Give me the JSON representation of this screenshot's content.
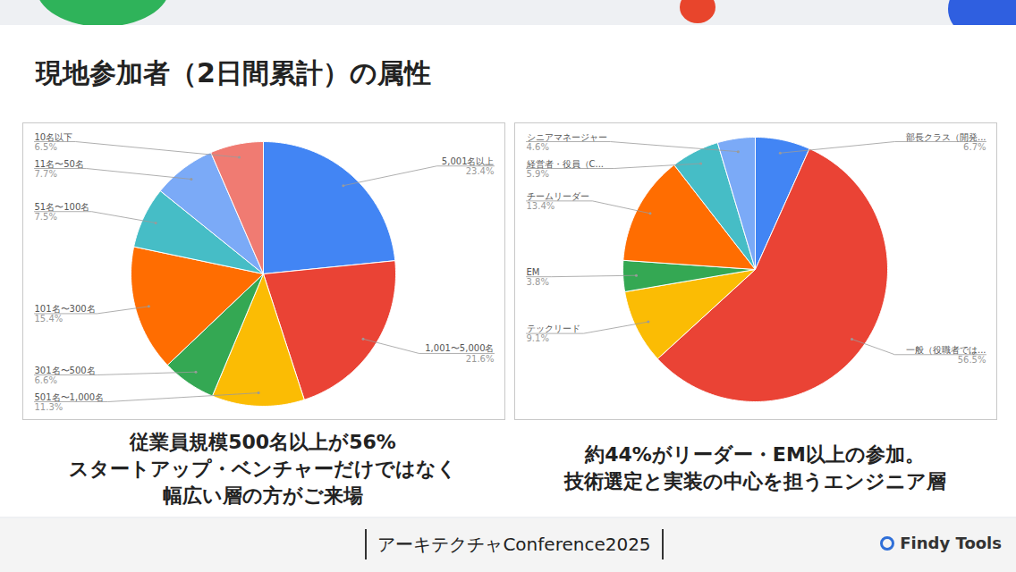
{
  "title": "現地参加者（2日間累計）の属性",
  "footer": {
    "event": "アーキテクチャConference2025",
    "brand": "Findy Tools"
  },
  "chart_data": [
    {
      "type": "pie",
      "categories": [
        "5,001名以上",
        "1,001〜5,000名",
        "501名〜1,000名",
        "301名〜500名",
        "101名〜300名",
        "51名〜100名",
        "11名〜50名",
        "10名以下"
      ],
      "values": [
        23.4,
        21.6,
        11.3,
        6.6,
        15.4,
        7.5,
        7.7,
        6.5
      ],
      "value_labels": [
        "23.4%",
        "21.6%",
        "11.3%",
        "6.6%",
        "15.4%",
        "7.5%",
        "7.7%",
        "6.5%"
      ],
      "colors": [
        "#4285f4",
        "#ea4335",
        "#fbbc04",
        "#34a853",
        "#ff6d01",
        "#46bdc6",
        "#7baaf7",
        "#f07b72"
      ],
      "data_labels": true,
      "annotations": [
        "従業員規模500名以上が56%",
        "スタートアップ・ベンチャーだけではなく",
        "幅広い層の方がご来場"
      ]
    },
    {
      "type": "pie",
      "categories": [
        "部長クラス（開発...",
        "一般（役職者では...",
        "テックリード",
        "EM",
        "チームリーダー",
        "経営者・役員（C...",
        "シニアマネージャー"
      ],
      "values": [
        6.7,
        56.5,
        9.1,
        3.8,
        13.4,
        5.9,
        4.6
      ],
      "value_labels": [
        "6.7%",
        "56.5%",
        "9.1%",
        "3.8%",
        "13.4%",
        "5.9%",
        "4.6%"
      ],
      "colors": [
        "#4285f4",
        "#ea4335",
        "#fbbc04",
        "#34a853",
        "#ff6d01",
        "#46bdc6",
        "#7baaf7"
      ],
      "data_labels": true,
      "annotations": [
        "約44%がリーダー・EM以上の参加。",
        "技術選定と実装の中心を担うエンジニア層"
      ]
    }
  ]
}
